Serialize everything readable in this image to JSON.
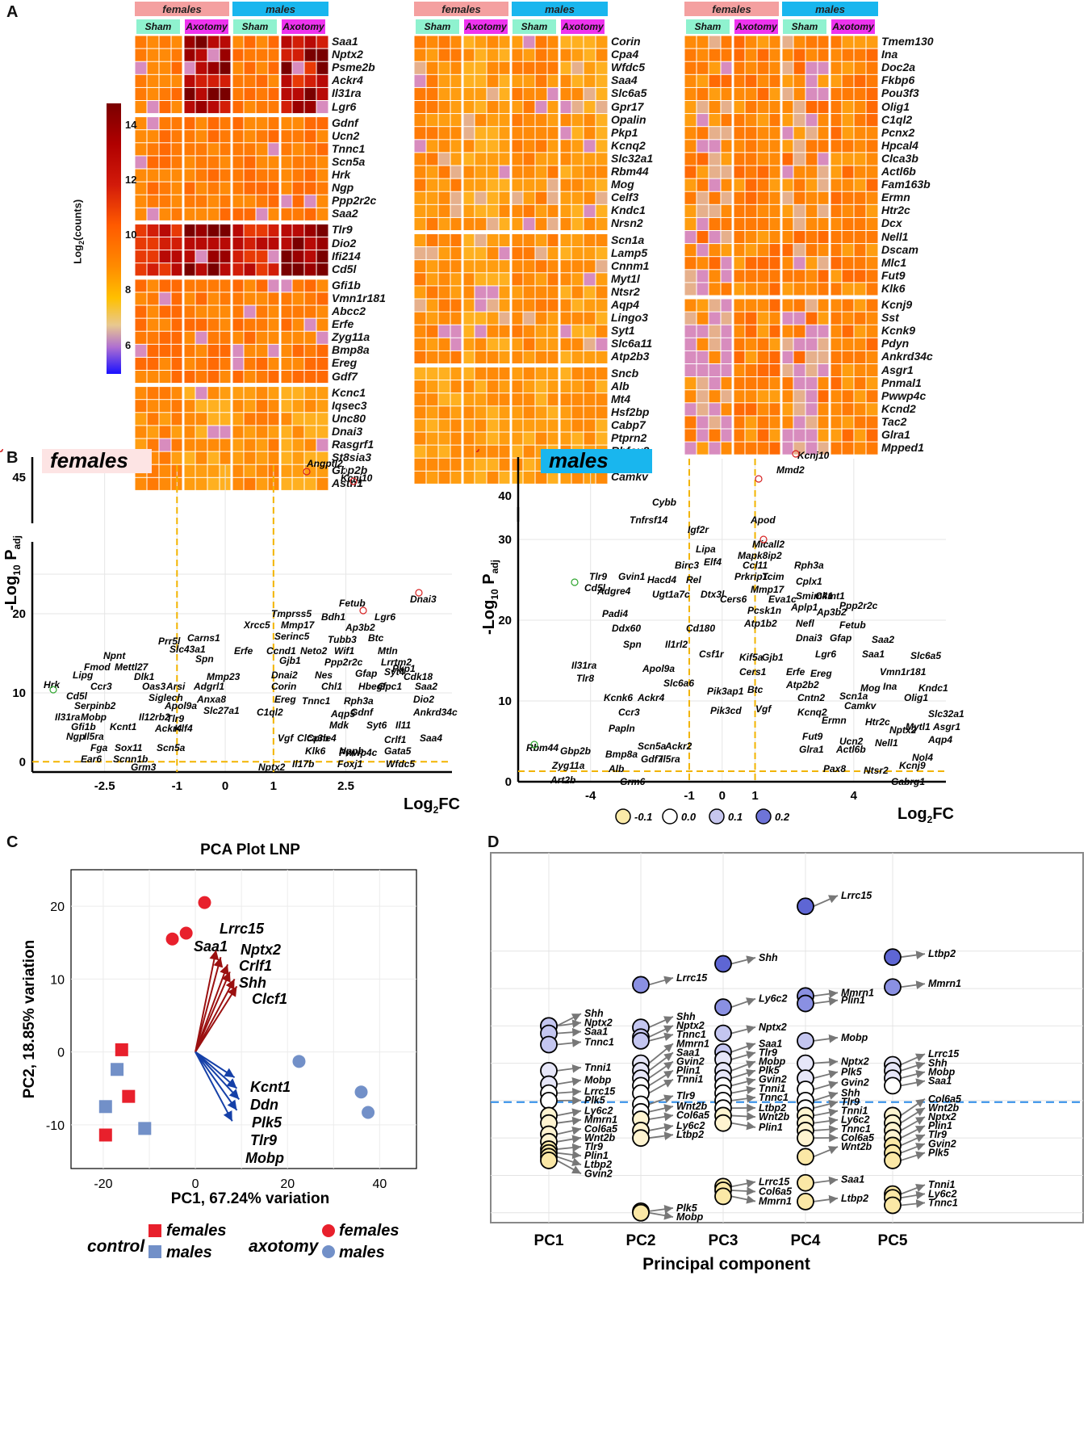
{
  "panels": {
    "a": "A",
    "b": "B",
    "c": "C",
    "d": "D"
  },
  "heatmap": {
    "headers": {
      "females": "females",
      "males": "males",
      "sham": "Sham",
      "axotomy": "Axotomy"
    },
    "legend": {
      "title": "Log2(counts)",
      "ticks": [
        "14",
        "12",
        "10",
        "8",
        "6"
      ],
      "colors": [
        "#7a0000",
        "#d21a0a",
        "#ff7a00",
        "#ffd000",
        "#e8d6a0",
        "#b070d0",
        "#1a10ff"
      ]
    },
    "col1_genes": [
      "Saa1",
      "Nptx2",
      "Psme2b",
      "Ackr4",
      "Il31ra",
      "Lgr6",
      "Gdnf",
      "Ucn2",
      "Tnnc1",
      "Scn5a",
      "Hrk",
      "Ngp",
      "Ppp2r2c",
      "Saa2",
      "Tlr9",
      "Dio2",
      "Ifi214",
      "Cd5l",
      "Gfi1b",
      "Vmn1r181",
      "Abcc2",
      "Erfe",
      "Zyg11a",
      "Bmp8a",
      "Ereg",
      "Gdf7",
      "Kcnc1",
      "Iqsec3",
      "Unc80",
      "Dnai3",
      "Rasgrf1",
      "St8sia3",
      "Gbp2b",
      "Astn1"
    ],
    "col2_genes": [
      "Corin",
      "Cpa4",
      "Wfdc5",
      "Saa4",
      "Slc6a5",
      "Gpr17",
      "Opalin",
      "Pkp1",
      "Kcnq2",
      "Slc32a1",
      "Rbm44",
      "Mog",
      "Celf3",
      "Kndc1",
      "Nrsn2",
      "Scn1a",
      "Lamp5",
      "Cnnm1",
      "Myt1l",
      "Ntsr2",
      "Aqp4",
      "Lingo3",
      "Syt1",
      "Slc6a11",
      "Atp2b3",
      "Sncb",
      "Alb",
      "Mt4",
      "Hsf2bp",
      "Cabp7",
      "Ptprn2",
      "Rbfox3",
      "Atcay",
      "Camkv"
    ],
    "col3_genes": [
      "Tmem130",
      "Ina",
      "Doc2a",
      "Fkbp6",
      "Pou3f3",
      "Olig1",
      "C1ql2",
      "Pcnx2",
      "Hpcal4",
      "Clca3b",
      "Actl6b",
      "Fam163b",
      "Ermn",
      "Htr2c",
      "Dcx",
      "Nell1",
      "Dscam",
      "Mlc1",
      "Fut9",
      "Klk6",
      "Kcnj9",
      "Sst",
      "Kcnk9",
      "Pdyn",
      "Ankrd34c",
      "Asgr1",
      "Pnmal1",
      "Pwwp4c",
      "Kcnd2",
      "Tac2",
      "Glra1",
      "Mpped1"
    ]
  },
  "volcano_females": {
    "tag": "females",
    "y_axis": "-Log10 Padj",
    "x_axis": "Log2FC",
    "x_ticks": [
      "-2.5",
      "-1",
      "0",
      "1",
      "2.5"
    ],
    "y_ticks": [
      "0",
      "10",
      "20",
      "45"
    ],
    "labels_up": [
      "Angptl2",
      "Kcnj10",
      "Dnai3",
      "Fetub",
      "Tmprss5",
      "Bdh1",
      "Lgr6",
      "Xrcc5",
      "Mmp17",
      "Ap3b2",
      "Btc",
      "Serinc5",
      "Tubb3",
      "Ccnd1",
      "Neto2",
      "Wif1",
      "Erfe",
      "Mtln",
      "Gjb1",
      "Lrrtm2",
      "Ppp2r2c",
      "Pkp1",
      "Dnai2",
      "Nes",
      "Gfap",
      "Syt4",
      "Corin",
      "Chl1",
      "Hbegf",
      "Cdk18",
      "Ereg",
      "Tnnc1",
      "Rph3a",
      "Gpc1",
      "Saa2",
      "Dio2",
      "C1ql2",
      "Aqp5",
      "Gdnf",
      "Ankrd34c",
      "Mdk",
      "Syt6",
      "Vgf",
      "Il11",
      "Clca3b",
      "Cpne4",
      "Crlf1",
      "Saa4",
      "Klk6",
      "Nppb",
      "Gata5",
      "Nptx2",
      "Il17b",
      "Foxj1",
      "Wfdc5",
      "Pwwp4c"
    ],
    "labels_down": [
      "Hrk",
      "Lipg",
      "Npnt",
      "Prr5l",
      "Carns1",
      "Slc43a1",
      "Mettl27",
      "Spn",
      "Fmod",
      "Dlk1",
      "Mmp23",
      "Ccr3",
      "Oas3",
      "Arsi",
      "Adgrl1",
      "Cd5l",
      "Serpinb2",
      "Siglech",
      "Anxa8",
      "Il31ra",
      "Mobp",
      "Apol9a",
      "Slc27a1",
      "Gfi1b",
      "Kcnt1",
      "Il12rb2",
      "Tlr9",
      "Klf4",
      "Ngp",
      "Il5ra",
      "Ackr4",
      "Fga",
      "Sox11",
      "Scn5a",
      "Ear6",
      "Scnn1b",
      "Grm3"
    ]
  },
  "volcano_males": {
    "tag": "males",
    "y_axis": "-Log10 Padj",
    "x_axis": "Log2FC",
    "x_ticks": [
      "-4",
      "-1",
      "0",
      "1",
      "4"
    ],
    "y_ticks": [
      "0",
      "10",
      "20",
      "30",
      "40"
    ],
    "labels_up": [
      "Kcnj10",
      "Mmd2",
      "Apod",
      "Micall2",
      "Mapk8ip2",
      "Cplx1",
      "Ccl11",
      "Rph3a",
      "Prkrip1",
      "Tcim",
      "Smim41",
      "Mmp17",
      "Ppp2r2c",
      "Eva1c",
      "Ckmt1",
      "Pcsk1n",
      "Ap3b2",
      "Aplp1",
      "Atp1b2",
      "Nefl",
      "Fetub",
      "Dnai3",
      "Gfap",
      "Saa2",
      "Kif5a",
      "Gjb1",
      "Lgr6",
      "Saa1",
      "Slc6a5",
      "Cers1",
      "Erfe",
      "Ereg",
      "Vmn1r181",
      "Btc",
      "Atp2b2",
      "Mog",
      "Ina",
      "Kndc1",
      "Cntn2",
      "Scn1a",
      "Olig1",
      "Vgf",
      "Kcnq2",
      "Camkv",
      "Slc32a1",
      "Ermn",
      "Htr2c",
      "Mytl1",
      "Asgr1",
      "Fut9",
      "Ucn2",
      "Nptx2",
      "Aqp4",
      "Glra1",
      "Actl6b",
      "Nell1",
      "Nol4",
      "Pax8",
      "Ntsr2",
      "Kcnj9",
      "Gabrg1"
    ],
    "labels_down": [
      "Cybb",
      "Tnfrsf14",
      "Igf2r",
      "Lipa",
      "Elf4",
      "Birc3",
      "Tlr9",
      "Gvin1",
      "Hacd4",
      "Rel",
      "Cd5l",
      "Adgre4",
      "Ugt1a7c",
      "Dtx3l",
      "Cers6",
      "Padi4",
      "Ddx60",
      "Cd180",
      "Spn",
      "Il1rl2",
      "Csf1r",
      "Il31ra",
      "Apol9a",
      "Tlr8",
      "Slc6a6",
      "Pik3ap1",
      "Pik3cd",
      "Kcnk6",
      "Ackr4",
      "Ccr3",
      "Papln",
      "Scn5a",
      "Ackr2",
      "Il5ra",
      "Rbm44",
      "Gbp2b",
      "Bmp8a",
      "Gdf7",
      "Zyg11a",
      "Alb",
      "Art2b",
      "Grm6"
    ]
  },
  "pca": {
    "title": "PCA Plot LNP",
    "xlabel": "PC1, 67.24% variation",
    "ylabel": "PC2, 18.85% variation",
    "x_ticks": [
      "-20",
      "0",
      "20",
      "40"
    ],
    "y_ticks": [
      "20",
      "10",
      "0",
      "-10"
    ],
    "up_loadings": [
      "Lrrc15",
      "Saa1",
      "Nptx2",
      "Crlf1",
      "Shh",
      "Clcf1"
    ],
    "down_loadings": [
      "Kcnt1",
      "Ddn",
      "Plk5",
      "Tlr9",
      "Mobp"
    ],
    "legend": {
      "control": "control",
      "axotomy": "axotomy",
      "females": "females",
      "males": "males"
    }
  },
  "loadings": {
    "xlabel": "Principal component",
    "ylabel": "Component loading",
    "x_ticks": [
      "PC1",
      "PC2",
      "PC3",
      "PC4",
      "PC5"
    ],
    "y_ticks": [
      "0.2",
      "0.1",
      "0.0",
      "-0.1"
    ],
    "legend_values": [
      "-0.1",
      "0.0",
      "0.1",
      "0.2"
    ],
    "pc1": [
      "Shh",
      "Nptx2",
      "Saa1",
      "Tnnc1",
      "Tnni1",
      "Mobp",
      "Lrrc15",
      "Plk5",
      "Ly6c2",
      "Mmrn1",
      "Col6a5",
      "Wnt2b",
      "Tlr9",
      "Plin1",
      "Ltbp2",
      "Gvin2"
    ],
    "pc2": [
      "Lrrc15",
      "Shh",
      "Nptx2",
      "Tnnc1",
      "Mmrn1",
      "Saa1",
      "Gvin2",
      "Plin1",
      "Tnni1",
      "Tlr9",
      "Wnt2b",
      "Col6a5",
      "Ly6c2",
      "Ltbp2",
      "Plk5",
      "Mobp"
    ],
    "pc3": [
      "Shh",
      "Ly6c2",
      "Nptx2",
      "Saa1",
      "Tlr9",
      "Mobp",
      "Plk5",
      "Gvin2",
      "Tnni1",
      "Tnnc1",
      "Ltbp2",
      "Wnt2b",
      "Plin1",
      "Lrrc15",
      "Col6a5",
      "Mmrn1"
    ],
    "pc4": [
      "Lrrc15",
      "Mmrn1",
      "Plin1",
      "Mobp",
      "Nptx2",
      "Plk5",
      "Gvin2",
      "Shh",
      "Tlr9",
      "Tnni1",
      "Ly6c2",
      "Tnnc1",
      "Col6a5",
      "Wnt2b",
      "Saa1",
      "Ltbp2"
    ],
    "pc5": [
      "Ltbp2",
      "Mmrn1",
      "Lrrc15",
      "Shh",
      "Mobp",
      "Saa1",
      "Col6a5",
      "Wnt2b",
      "Nptx2",
      "Plin1",
      "Tlr9",
      "Gvin2",
      "Plk5",
      "Tnni1",
      "Ly6c2",
      "Tnnc1"
    ]
  }
}
